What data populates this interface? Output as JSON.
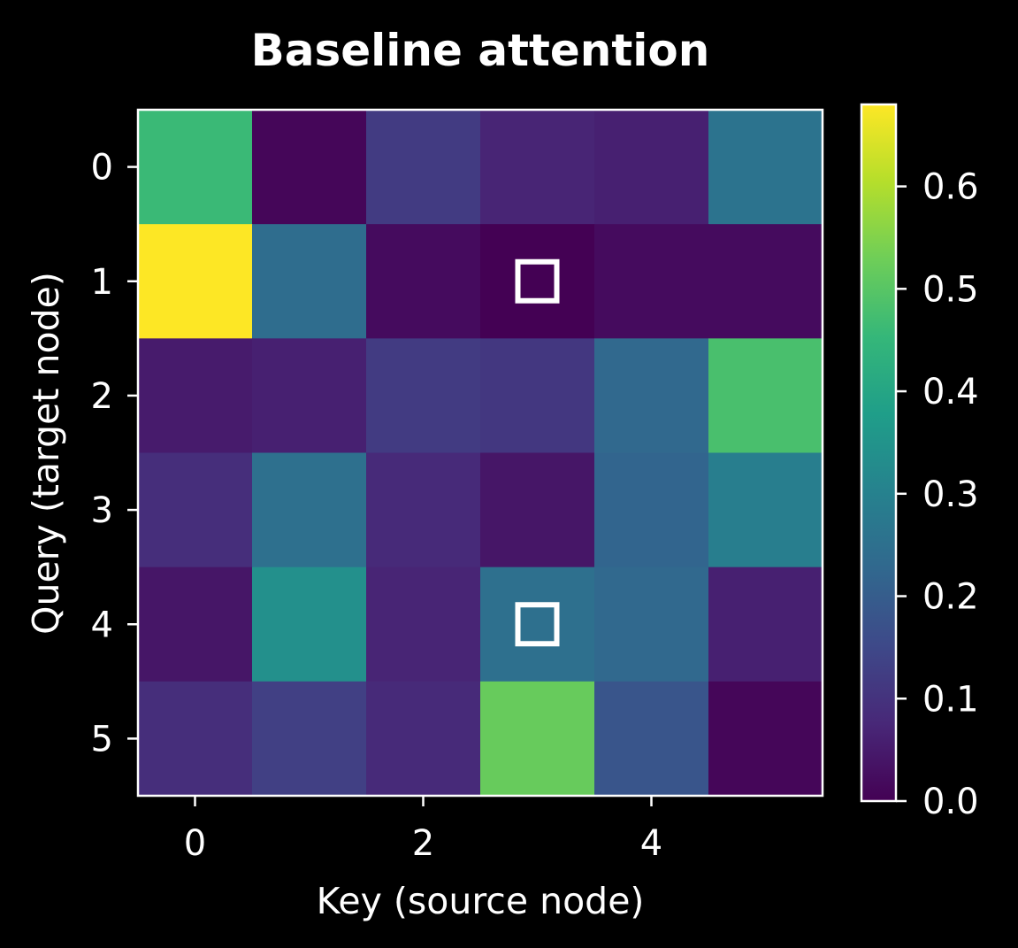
{
  "chart_data": {
    "type": "heatmap",
    "title": "Baseline attention",
    "xlabel": "Key (source node)",
    "ylabel": "Query (target node)",
    "x_ticks": [
      0,
      2,
      4
    ],
    "y_ticks": [
      0,
      1,
      2,
      3,
      4,
      5
    ],
    "values": [
      [
        0.46,
        0.01,
        0.12,
        0.07,
        0.06,
        0.26
      ],
      [
        0.68,
        0.24,
        0.02,
        0.0,
        0.02,
        0.02
      ],
      [
        0.05,
        0.06,
        0.12,
        0.11,
        0.23,
        0.48
      ],
      [
        0.09,
        0.25,
        0.08,
        0.04,
        0.22,
        0.29
      ],
      [
        0.04,
        0.34,
        0.07,
        0.25,
        0.23,
        0.06
      ],
      [
        0.09,
        0.13,
        0.08,
        0.52,
        0.18,
        0.01
      ]
    ],
    "highlighted_cells": [
      [
        1,
        3
      ],
      [
        4,
        3
      ]
    ],
    "colormap": "viridis",
    "colorbar": {
      "min": 0.0,
      "max": 0.68,
      "ticks": [
        0.0,
        0.1,
        0.2,
        0.3,
        0.4,
        0.5,
        0.6
      ],
      "tick_labels": [
        "0.0",
        "0.1",
        "0.2",
        "0.3",
        "0.4",
        "0.5",
        "0.6"
      ]
    },
    "colors": {
      "background": "#000000",
      "foreground": "#ffffff",
      "highlight": "#ffffff"
    }
  }
}
